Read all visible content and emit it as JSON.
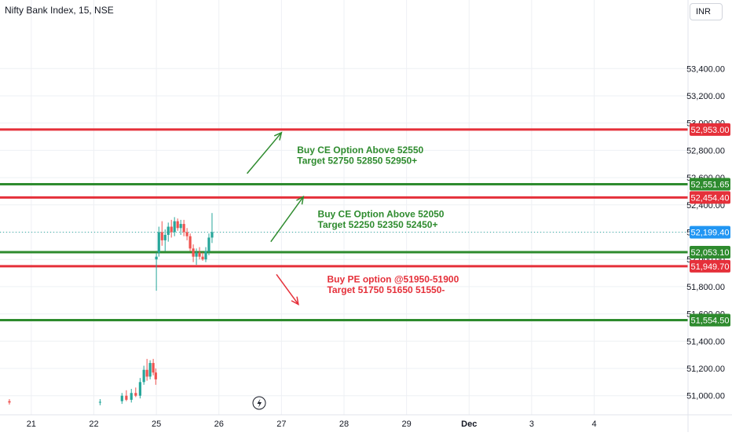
{
  "header": {
    "symbol_title": "Nifty Bank Index, 15, NSE"
  },
  "price_scale": {
    "currency": "INR"
  },
  "colors": {
    "up": "#26a69a",
    "down": "#ef5350",
    "green_line": "#2e8b2e",
    "red_line": "#e5303a",
    "grid": "#eef0f4",
    "axis_text": "#131722",
    "current_price": "#2196f3"
  },
  "icons": {
    "flash": "lightning-icon"
  },
  "chart_data": {
    "type": "candlestick",
    "title": "Nifty Bank Index, 15, NSE",
    "xlabel": "",
    "ylabel": "",
    "ylim": [
      50860,
      53730
    ],
    "xlim_index": [
      -0.5,
      10.5
    ],
    "y_ticks": [
      51000,
      51200,
      51400,
      51600,
      51800,
      52000,
      52200,
      52400,
      52600,
      52800,
      53000,
      53200,
      53400
    ],
    "y_tick_labels": [
      "51,000.00",
      "51,200.00",
      "51,400.00",
      "51,600.00",
      "51,800.00",
      "52,000.00",
      "52,200.00",
      "52,400.00",
      "52,600.00",
      "52,800.00",
      "53,000.00",
      "53,200.00",
      "53,400.00"
    ],
    "x_ticks": [
      {
        "label": "21",
        "index": 0
      },
      {
        "label": "22",
        "index": 1
      },
      {
        "label": "25",
        "index": 2
      },
      {
        "label": "26",
        "index": 3
      },
      {
        "label": "27",
        "index": 4
      },
      {
        "label": "28",
        "index": 5
      },
      {
        "label": "29",
        "index": 6
      },
      {
        "label": "Dec",
        "index": 7
      },
      {
        "label": "3",
        "index": 8
      },
      {
        "label": "4",
        "index": 9
      }
    ],
    "grid": true,
    "current_price": {
      "value": 52199.4,
      "label": "52,199.40"
    },
    "levels": [
      {
        "value": 52953.0,
        "label": "52,953.00",
        "color": "red"
      },
      {
        "value": 52551.65,
        "label": "52,551.65",
        "color": "green"
      },
      {
        "value": 52454.4,
        "label": "52,454.40",
        "color": "red"
      },
      {
        "value": 52053.1,
        "label": "52,053.10",
        "color": "green"
      },
      {
        "value": 51949.7,
        "label": "51,949.70",
        "color": "red"
      },
      {
        "value": 51554.5,
        "label": "51,554.50",
        "color": "green"
      }
    ],
    "candles": [
      {
        "t": -0.35,
        "o": 50960,
        "h": 50975,
        "l": 50935,
        "c": 50950
      },
      {
        "t": 1.1,
        "o": 50950,
        "h": 50975,
        "l": 50930,
        "c": 50955
      },
      {
        "t": 1.45,
        "o": 50960,
        "h": 51020,
        "l": 50940,
        "c": 51000
      },
      {
        "t": 1.52,
        "o": 51000,
        "h": 51040,
        "l": 50960,
        "c": 50970
      },
      {
        "t": 1.6,
        "o": 50970,
        "h": 51050,
        "l": 50950,
        "c": 51020
      },
      {
        "t": 1.67,
        "o": 51020,
        "h": 51060,
        "l": 50990,
        "c": 51000
      },
      {
        "t": 1.74,
        "o": 51000,
        "h": 51130,
        "l": 50980,
        "c": 51100
      },
      {
        "t": 1.8,
        "o": 51100,
        "h": 51220,
        "l": 51080,
        "c": 51190
      },
      {
        "t": 1.85,
        "o": 51190,
        "h": 51270,
        "l": 51110,
        "c": 51140
      },
      {
        "t": 1.9,
        "o": 51140,
        "h": 51260,
        "l": 51120,
        "c": 51240
      },
      {
        "t": 1.95,
        "o": 51240,
        "h": 51270,
        "l": 51150,
        "c": 51170
      },
      {
        "t": 1.99,
        "o": 51170,
        "h": 51200,
        "l": 51080,
        "c": 51120
      },
      {
        "t": 2.0,
        "o": 52000,
        "h": 52050,
        "l": 51770,
        "c": 52020
      },
      {
        "t": 2.04,
        "o": 52050,
        "h": 52240,
        "l": 52020,
        "c": 52200
      },
      {
        "t": 2.09,
        "o": 52200,
        "h": 52280,
        "l": 52100,
        "c": 52140
      },
      {
        "t": 2.14,
        "o": 52140,
        "h": 52220,
        "l": 52060,
        "c": 52180
      },
      {
        "t": 2.19,
        "o": 52180,
        "h": 52270,
        "l": 52130,
        "c": 52240
      },
      {
        "t": 2.24,
        "o": 52240,
        "h": 52290,
        "l": 52160,
        "c": 52200
      },
      {
        "t": 2.29,
        "o": 52200,
        "h": 52310,
        "l": 52170,
        "c": 52280
      },
      {
        "t": 2.34,
        "o": 52280,
        "h": 52300,
        "l": 52210,
        "c": 52230
      },
      {
        "t": 2.39,
        "o": 52230,
        "h": 52290,
        "l": 52180,
        "c": 52260
      },
      {
        "t": 2.44,
        "o": 52260,
        "h": 52290,
        "l": 52170,
        "c": 52200
      },
      {
        "t": 2.49,
        "o": 52200,
        "h": 52230,
        "l": 52140,
        "c": 52170
      },
      {
        "t": 2.54,
        "o": 52170,
        "h": 52190,
        "l": 52060,
        "c": 52080
      },
      {
        "t": 2.59,
        "o": 52080,
        "h": 52110,
        "l": 51980,
        "c": 52020
      },
      {
        "t": 2.64,
        "o": 52020,
        "h": 52080,
        "l": 51960,
        "c": 52050
      },
      {
        "t": 2.69,
        "o": 52050,
        "h": 52090,
        "l": 52000,
        "c": 52020
      },
      {
        "t": 2.74,
        "o": 52020,
        "h": 52050,
        "l": 51990,
        "c": 52000
      },
      {
        "t": 2.79,
        "o": 52000,
        "h": 52090,
        "l": 51980,
        "c": 52060
      },
      {
        "t": 2.84,
        "o": 52060,
        "h": 52190,
        "l": 52030,
        "c": 52160
      },
      {
        "t": 2.89,
        "o": 52160,
        "h": 52340,
        "l": 52120,
        "c": 52200
      }
    ]
  },
  "annotations": [
    {
      "line1": "Buy CE Option Above 52550",
      "line2": "Target 52750 52850 52950+",
      "color": "green"
    },
    {
      "line1": "Buy CE Option Above 52050",
      "line2": "Target 52250 52350 52450+",
      "color": "green"
    },
    {
      "line1": "Buy PE option @51950-51900",
      "line2": "Target 51750 51650 51550-",
      "color": "red"
    }
  ]
}
